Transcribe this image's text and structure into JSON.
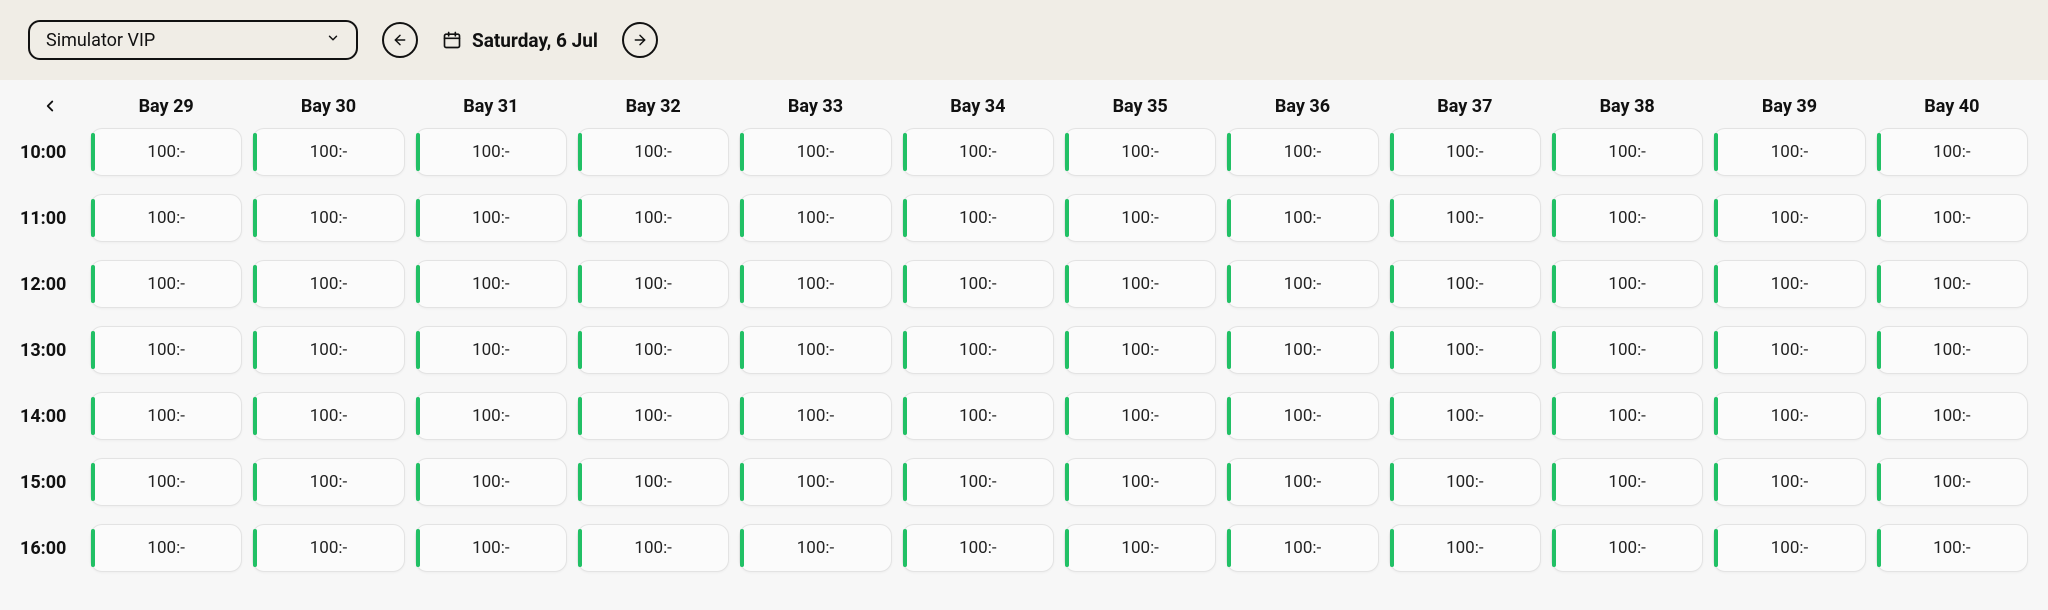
{
  "toolbar": {
    "dropdown_label": "Simulator VIP",
    "date_label": "Saturday, 6 Jul"
  },
  "colors": {
    "slot_accent": "#21c065",
    "page_bg": "#f0ede6",
    "grid_bg": "#f7f7f7",
    "slot_bg": "#fbfbfb",
    "slot_border": "#e3e3e3",
    "text": "#111111"
  },
  "bays": [
    "Bay 29",
    "Bay 30",
    "Bay 31",
    "Bay 32",
    "Bay 33",
    "Bay 34",
    "Bay 35",
    "Bay 36",
    "Bay 37",
    "Bay 38",
    "Bay 39",
    "Bay 40"
  ],
  "times": [
    "10:00",
    "11:00",
    "12:00",
    "13:00",
    "14:00",
    "15:00",
    "16:00"
  ],
  "slot_price": "100:-"
}
